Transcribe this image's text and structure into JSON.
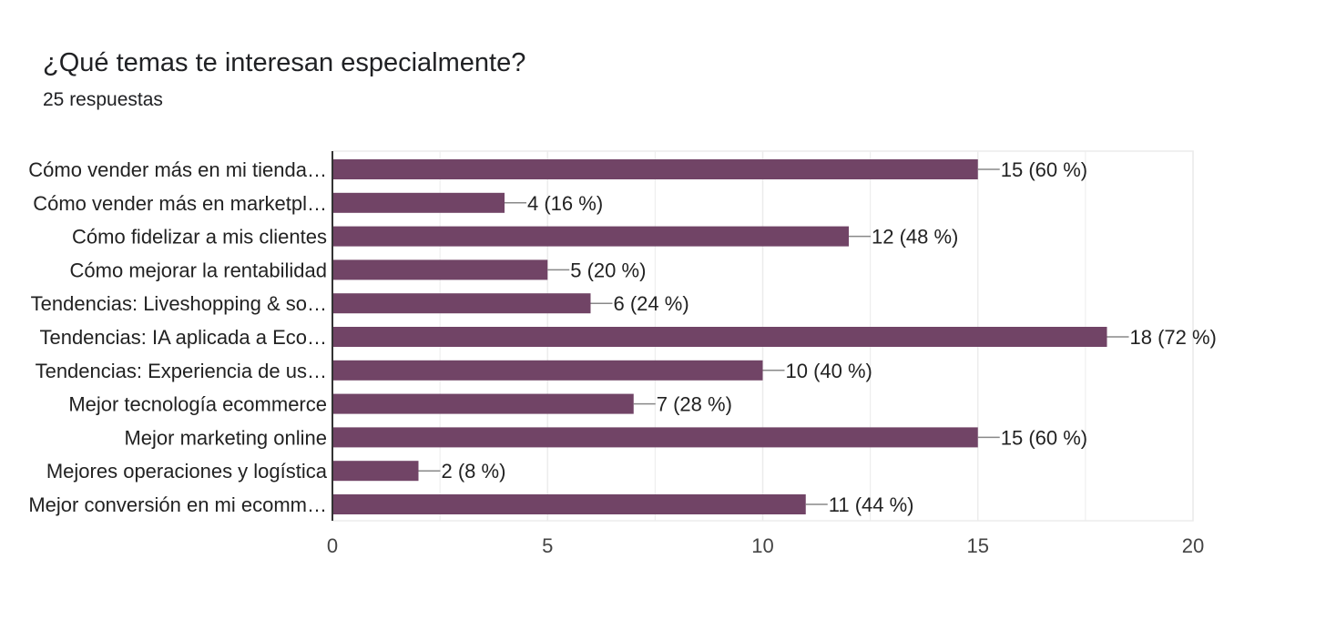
{
  "header": {
    "title": "¿Qué temas te interesan especialmente?",
    "subtitle": "25 respuestas"
  },
  "chart_data": {
    "type": "bar",
    "orientation": "horizontal",
    "title": "¿Qué temas te interesan especialmente?",
    "subtitle": "25 respuestas",
    "categories": [
      "Cómo vender más en mi tienda…",
      "Cómo vender más en marketpl…",
      "Cómo fidelizar a mis clientes",
      "Cómo mejorar la rentabilidad",
      "Tendencias: Liveshopping & so…",
      "Tendencias: IA aplicada a Eco…",
      "Tendencias: Experiencia de us…",
      "Mejor tecnología ecommerce",
      "Mejor marketing online",
      "Mejores operaciones y logística",
      "Mejor conversión en mi ecomm…"
    ],
    "values": [
      15,
      4,
      12,
      5,
      6,
      18,
      10,
      7,
      15,
      2,
      11
    ],
    "data_labels": [
      "15 (60 %)",
      "4 (16 %)",
      "12 (48 %)",
      "5 (20 %)",
      "6 (24 %)",
      "18 (72 %)",
      "10 (40 %)",
      "7 (28 %)",
      "15 (60 %)",
      "2 (8 %)",
      "11 (44 %)"
    ],
    "xlim": [
      0,
      20
    ],
    "xticks": [
      0,
      5,
      10,
      15,
      20
    ],
    "xtick_labels": [
      "0",
      "5",
      "10",
      "15",
      "20"
    ],
    "xlabel": "",
    "ylabel": "",
    "grid": true,
    "legend": "none",
    "bar_color": "#714466",
    "gridline_color": "#ececec",
    "axis_color": "#333333",
    "leader_line_color": "#888888"
  }
}
